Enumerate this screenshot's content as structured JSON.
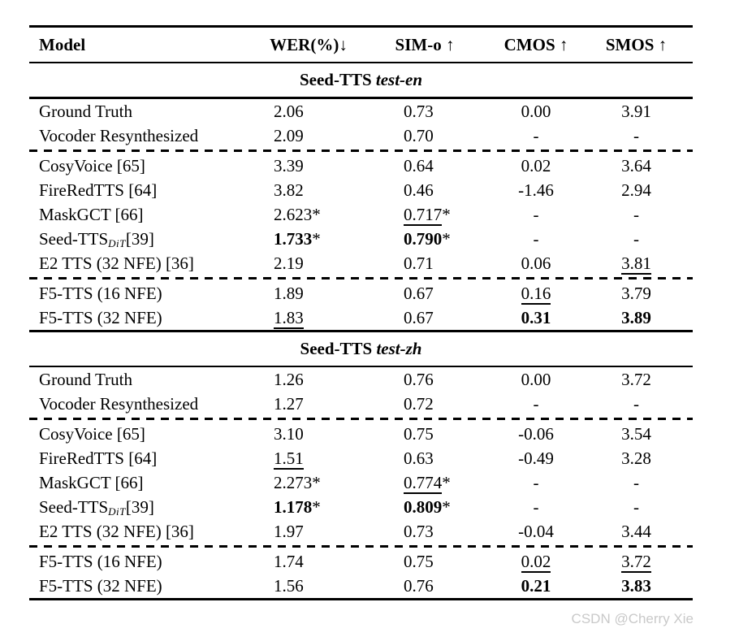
{
  "watermark": "CSDN @Cherry Xie",
  "table": {
    "columns": [
      "Model",
      "WER(%)↓",
      "SIM-o ↑",
      "CMOS ↑",
      "SMOS ↑"
    ],
    "sections": [
      {
        "title_main": "Seed-TTS",
        "title_italic": "test-en",
        "groups": [
          {
            "rows": [
              {
                "model": "Ground Truth",
                "cells": [
                  {
                    "t": "2.06"
                  },
                  {
                    "t": "0.73"
                  },
                  {
                    "t": "0.00"
                  },
                  {
                    "t": "3.91"
                  }
                ]
              },
              {
                "model": "Vocoder Resynthesized",
                "cells": [
                  {
                    "t": "2.09"
                  },
                  {
                    "t": "0.70"
                  },
                  {
                    "t": "-"
                  },
                  {
                    "t": "-"
                  }
                ]
              }
            ]
          },
          {
            "rows": [
              {
                "model": "CosyVoice [65]",
                "cells": [
                  {
                    "t": "3.39"
                  },
                  {
                    "t": "0.64"
                  },
                  {
                    "t": "0.02"
                  },
                  {
                    "t": "3.64"
                  }
                ]
              },
              {
                "model": "FireRedTTS [64]",
                "cells": [
                  {
                    "t": "3.82"
                  },
                  {
                    "t": "0.46"
                  },
                  {
                    "t": "-1.46"
                  },
                  {
                    "t": "2.94"
                  }
                ]
              },
              {
                "model": "MaskGCT [66]",
                "cells": [
                  {
                    "t": "2.623",
                    "star": true
                  },
                  {
                    "t": "0.717",
                    "star": true,
                    "u": true
                  },
                  {
                    "t": "-"
                  },
                  {
                    "t": "-"
                  }
                ]
              },
              {
                "model": "Seed-TTS",
                "model_sub": "DiT",
                "model_rest": "[39]",
                "cells": [
                  {
                    "t": "1.733",
                    "star": true,
                    "b": true
                  },
                  {
                    "t": "0.790",
                    "star": true,
                    "b": true
                  },
                  {
                    "t": "-"
                  },
                  {
                    "t": "-"
                  }
                ]
              },
              {
                "model": "E2 TTS (32 NFE) [36]",
                "cells": [
                  {
                    "t": "2.19"
                  },
                  {
                    "t": "0.71"
                  },
                  {
                    "t": "0.06"
                  },
                  {
                    "t": "3.81",
                    "u": true
                  }
                ]
              }
            ]
          },
          {
            "rows": [
              {
                "model": "F5-TTS (16 NFE)",
                "cells": [
                  {
                    "t": "1.89"
                  },
                  {
                    "t": "0.67"
                  },
                  {
                    "t": "0.16",
                    "u": true
                  },
                  {
                    "t": "3.79"
                  }
                ]
              },
              {
                "model": "F5-TTS (32 NFE)",
                "cells": [
                  {
                    "t": "1.83",
                    "u": true
                  },
                  {
                    "t": "0.67"
                  },
                  {
                    "t": "0.31",
                    "b": true
                  },
                  {
                    "t": "3.89",
                    "b": true
                  }
                ]
              }
            ]
          }
        ]
      },
      {
        "title_main": "Seed-TTS",
        "title_italic": "test-zh",
        "groups": [
          {
            "rows": [
              {
                "model": "Ground Truth",
                "cells": [
                  {
                    "t": "1.26"
                  },
                  {
                    "t": "0.76"
                  },
                  {
                    "t": "0.00"
                  },
                  {
                    "t": "3.72"
                  }
                ]
              },
              {
                "model": "Vocoder Resynthesized",
                "cells": [
                  {
                    "t": "1.27"
                  },
                  {
                    "t": "0.72"
                  },
                  {
                    "t": "-"
                  },
                  {
                    "t": "-"
                  }
                ]
              }
            ]
          },
          {
            "rows": [
              {
                "model": "CosyVoice [65]",
                "cells": [
                  {
                    "t": "3.10"
                  },
                  {
                    "t": "0.75"
                  },
                  {
                    "t": "-0.06"
                  },
                  {
                    "t": "3.54"
                  }
                ]
              },
              {
                "model": "FireRedTTS [64]",
                "cells": [
                  {
                    "t": "1.51",
                    "u": true
                  },
                  {
                    "t": "0.63"
                  },
                  {
                    "t": "-0.49"
                  },
                  {
                    "t": "3.28"
                  }
                ]
              },
              {
                "model": "MaskGCT [66]",
                "cells": [
                  {
                    "t": "2.273",
                    "star": true
                  },
                  {
                    "t": "0.774",
                    "star": true,
                    "u": true
                  },
                  {
                    "t": "-"
                  },
                  {
                    "t": "-"
                  }
                ]
              },
              {
                "model": "Seed-TTS",
                "model_sub": "DiT",
                "model_rest": "[39]",
                "cells": [
                  {
                    "t": "1.178",
                    "star": true,
                    "b": true
                  },
                  {
                    "t": "0.809",
                    "star": true,
                    "b": true
                  },
                  {
                    "t": "-"
                  },
                  {
                    "t": "-"
                  }
                ]
              },
              {
                "model": "E2 TTS (32 NFE) [36]",
                "cells": [
                  {
                    "t": "1.97"
                  },
                  {
                    "t": "0.73"
                  },
                  {
                    "t": "-0.04"
                  },
                  {
                    "t": "3.44"
                  }
                ]
              }
            ]
          },
          {
            "rows": [
              {
                "model": "F5-TTS (16 NFE)",
                "cells": [
                  {
                    "t": "1.74"
                  },
                  {
                    "t": "0.75"
                  },
                  {
                    "t": "0.02",
                    "u": true
                  },
                  {
                    "t": "3.72",
                    "u": true
                  }
                ]
              },
              {
                "model": "F5-TTS (32 NFE)",
                "cells": [
                  {
                    "t": "1.56"
                  },
                  {
                    "t": "0.76"
                  },
                  {
                    "t": "0.21",
                    "b": true
                  },
                  {
                    "t": "3.83",
                    "b": true
                  }
                ]
              }
            ]
          }
        ]
      }
    ]
  }
}
